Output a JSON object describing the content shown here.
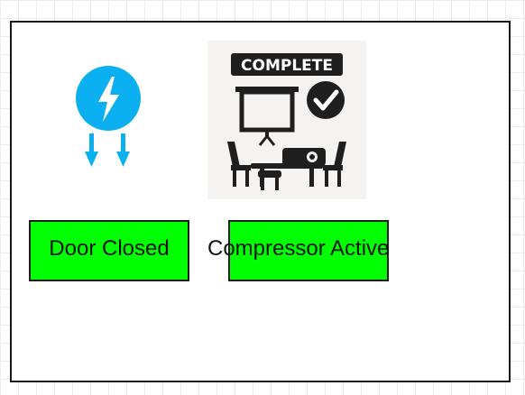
{
  "diagram": {
    "power_icon": "power-flow-icon",
    "image": {
      "icon": "meeting-room-projector-icon",
      "badge_text": "COMPLETE"
    }
  },
  "status": {
    "door": {
      "label": "Door Closed",
      "color": "#00ff00"
    },
    "compressor": {
      "label": "Compressor Active",
      "color": "#00ff00"
    }
  },
  "colors": {
    "icon_blue": "#0ab0f0",
    "border": "#1a1a1a",
    "badge": "#1f1f1f"
  }
}
